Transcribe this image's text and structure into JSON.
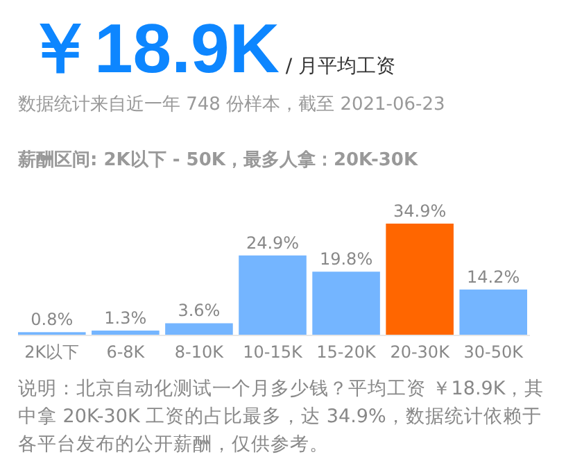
{
  "chart_data": {
    "type": "bar",
    "title": "￥18.9K",
    "subtitle": "/ 月平均工资",
    "annotations": [
      "数据统计来自近一年 748 份样本，截至 2021-06-23",
      "薪酬区间: 2K以下 - 50K，最多人拿：20K-30K",
      "说明：北京自动化测试一个月多少钱？平均工资 ￥18.9K，其中拿 20K-30K 工资的占比最多，达 34.9%，数据统计依赖于各平台发布的公开薪酬，仅供参考。"
    ],
    "categories": [
      "2K以下",
      "6-8K",
      "8-10K",
      "10-15K",
      "15-20K",
      "20-30K",
      "30-50K"
    ],
    "values": [
      0.8,
      1.3,
      3.6,
      24.9,
      19.8,
      34.9,
      14.2
    ],
    "value_labels": [
      "0.8%",
      "1.3%",
      "3.6%",
      "24.9%",
      "19.8%",
      "34.9%",
      "14.2%"
    ],
    "colors": [
      "#74b5ff",
      "#74b5ff",
      "#74b5ff",
      "#74b5ff",
      "#74b5ff",
      "#ff6600",
      "#74b5ff"
    ]
  }
}
